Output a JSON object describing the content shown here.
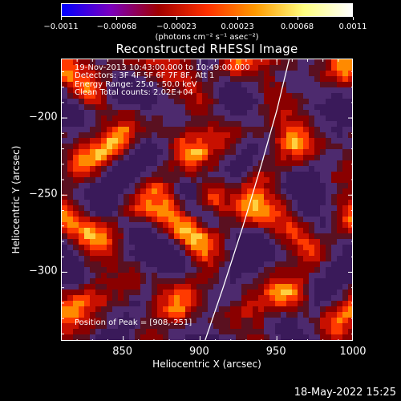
{
  "colorbar": {
    "ticks": [
      "−0.0011",
      "−0.00068",
      "−0.00023",
      "0.00023",
      "0.00068",
      "0.0011"
    ],
    "tick_values": [
      -0.0011,
      -0.00068,
      -0.00023,
      0.00023,
      0.00068,
      0.0011
    ],
    "range": [
      -0.0011,
      0.0011
    ],
    "unit_label": "(photons cm⁻² s⁻¹ asec⁻²)",
    "colors": [
      "#0000ff",
      "#7a00c0",
      "#a00000",
      "#ff3000",
      "#ff9a00",
      "#ffff80",
      "#ffffff"
    ]
  },
  "chart_data": {
    "type": "heatmap",
    "title": "Reconstructed RHESSI Image",
    "xlabel": "Heliocentric X (arcsec)",
    "ylabel": "Heliocentric Y (arcsec)",
    "xlim": [
      810,
      1000
    ],
    "ylim": [
      -345,
      -162
    ],
    "x_ticks": [
      "850",
      "900",
      "950",
      "1000"
    ],
    "x_tick_values": [
      850,
      900,
      950,
      1000
    ],
    "y_ticks": [
      "−200",
      "−250",
      "−300"
    ],
    "y_tick_values": [
      -200,
      -250,
      -300
    ],
    "peak": [
      908,
      -251
    ],
    "limb_curve": [
      [
        903,
        -345
      ],
      [
        915,
        -310
      ],
      [
        928,
        -270
      ],
      [
        940,
        -230
      ],
      [
        950,
        -195
      ],
      [
        958,
        -162
      ]
    ],
    "annotations": [
      "19-Nov-2013 10:43:00.000 to 10:49:00.000",
      "Detectors: 3F 4F 5F 6F 7F 8F, Att 1",
      "Energy Range: 25.0 - 50.0 keV",
      "Clean    Total counts: 2.02E+04",
      "Position of Peak = [908,-251]"
    ]
  },
  "footer": {
    "date": "18-May-2022 15:25"
  }
}
